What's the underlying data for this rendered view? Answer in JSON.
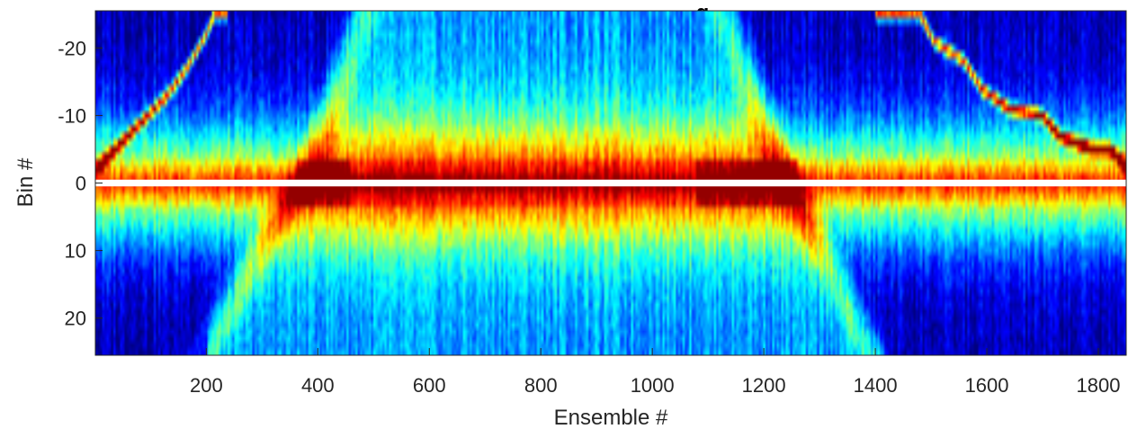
{
  "chart_data": {
    "type": "heatmap",
    "title": "g",
    "xlabel": "Ensemble #",
    "ylabel": "Bin #",
    "xlim": [
      1,
      1850
    ],
    "ylim": [
      -25.5,
      25.5
    ],
    "y_reversed": true,
    "x_ticks": [
      200,
      400,
      600,
      800,
      1000,
      1200,
      1400,
      1600,
      1800
    ],
    "y_ticks": [
      -20,
      -10,
      0,
      10,
      20
    ],
    "colormap": "jet",
    "colors": {
      "low": "#00008f",
      "mid": "#00ffff",
      "high": "#800000",
      "blank_row": "#ffffff"
    },
    "blank_row_bin": 0,
    "features": {
      "bright_band_bins": [
        -3,
        3
      ],
      "surface_track_left": [
        [
          1,
          -2
        ],
        [
          60,
          -7
        ],
        [
          130,
          -13
        ],
        [
          165,
          -17
        ],
        [
          200,
          -22
        ],
        [
          215,
          -25
        ]
      ],
      "surface_track_right": [
        [
          1425,
          -25
        ],
        [
          1480,
          -25
        ],
        [
          1505,
          -21
        ],
        [
          1560,
          -18
        ],
        [
          1590,
          -14
        ],
        [
          1640,
          -11
        ],
        [
          1700,
          -10
        ],
        [
          1730,
          -7
        ],
        [
          1790,
          -5
        ],
        [
          1820,
          -5
        ],
        [
          1845,
          -3
        ]
      ],
      "inverted_v_left": [
        [
          200,
          25
        ],
        [
          330,
          5
        ],
        [
          390,
          -2
        ],
        [
          480,
          -25
        ]
      ],
      "inverted_v_right": [
        [
          1390,
          25
        ],
        [
          1275,
          5
        ],
        [
          1230,
          -2
        ],
        [
          1130,
          -25
        ]
      ]
    }
  }
}
